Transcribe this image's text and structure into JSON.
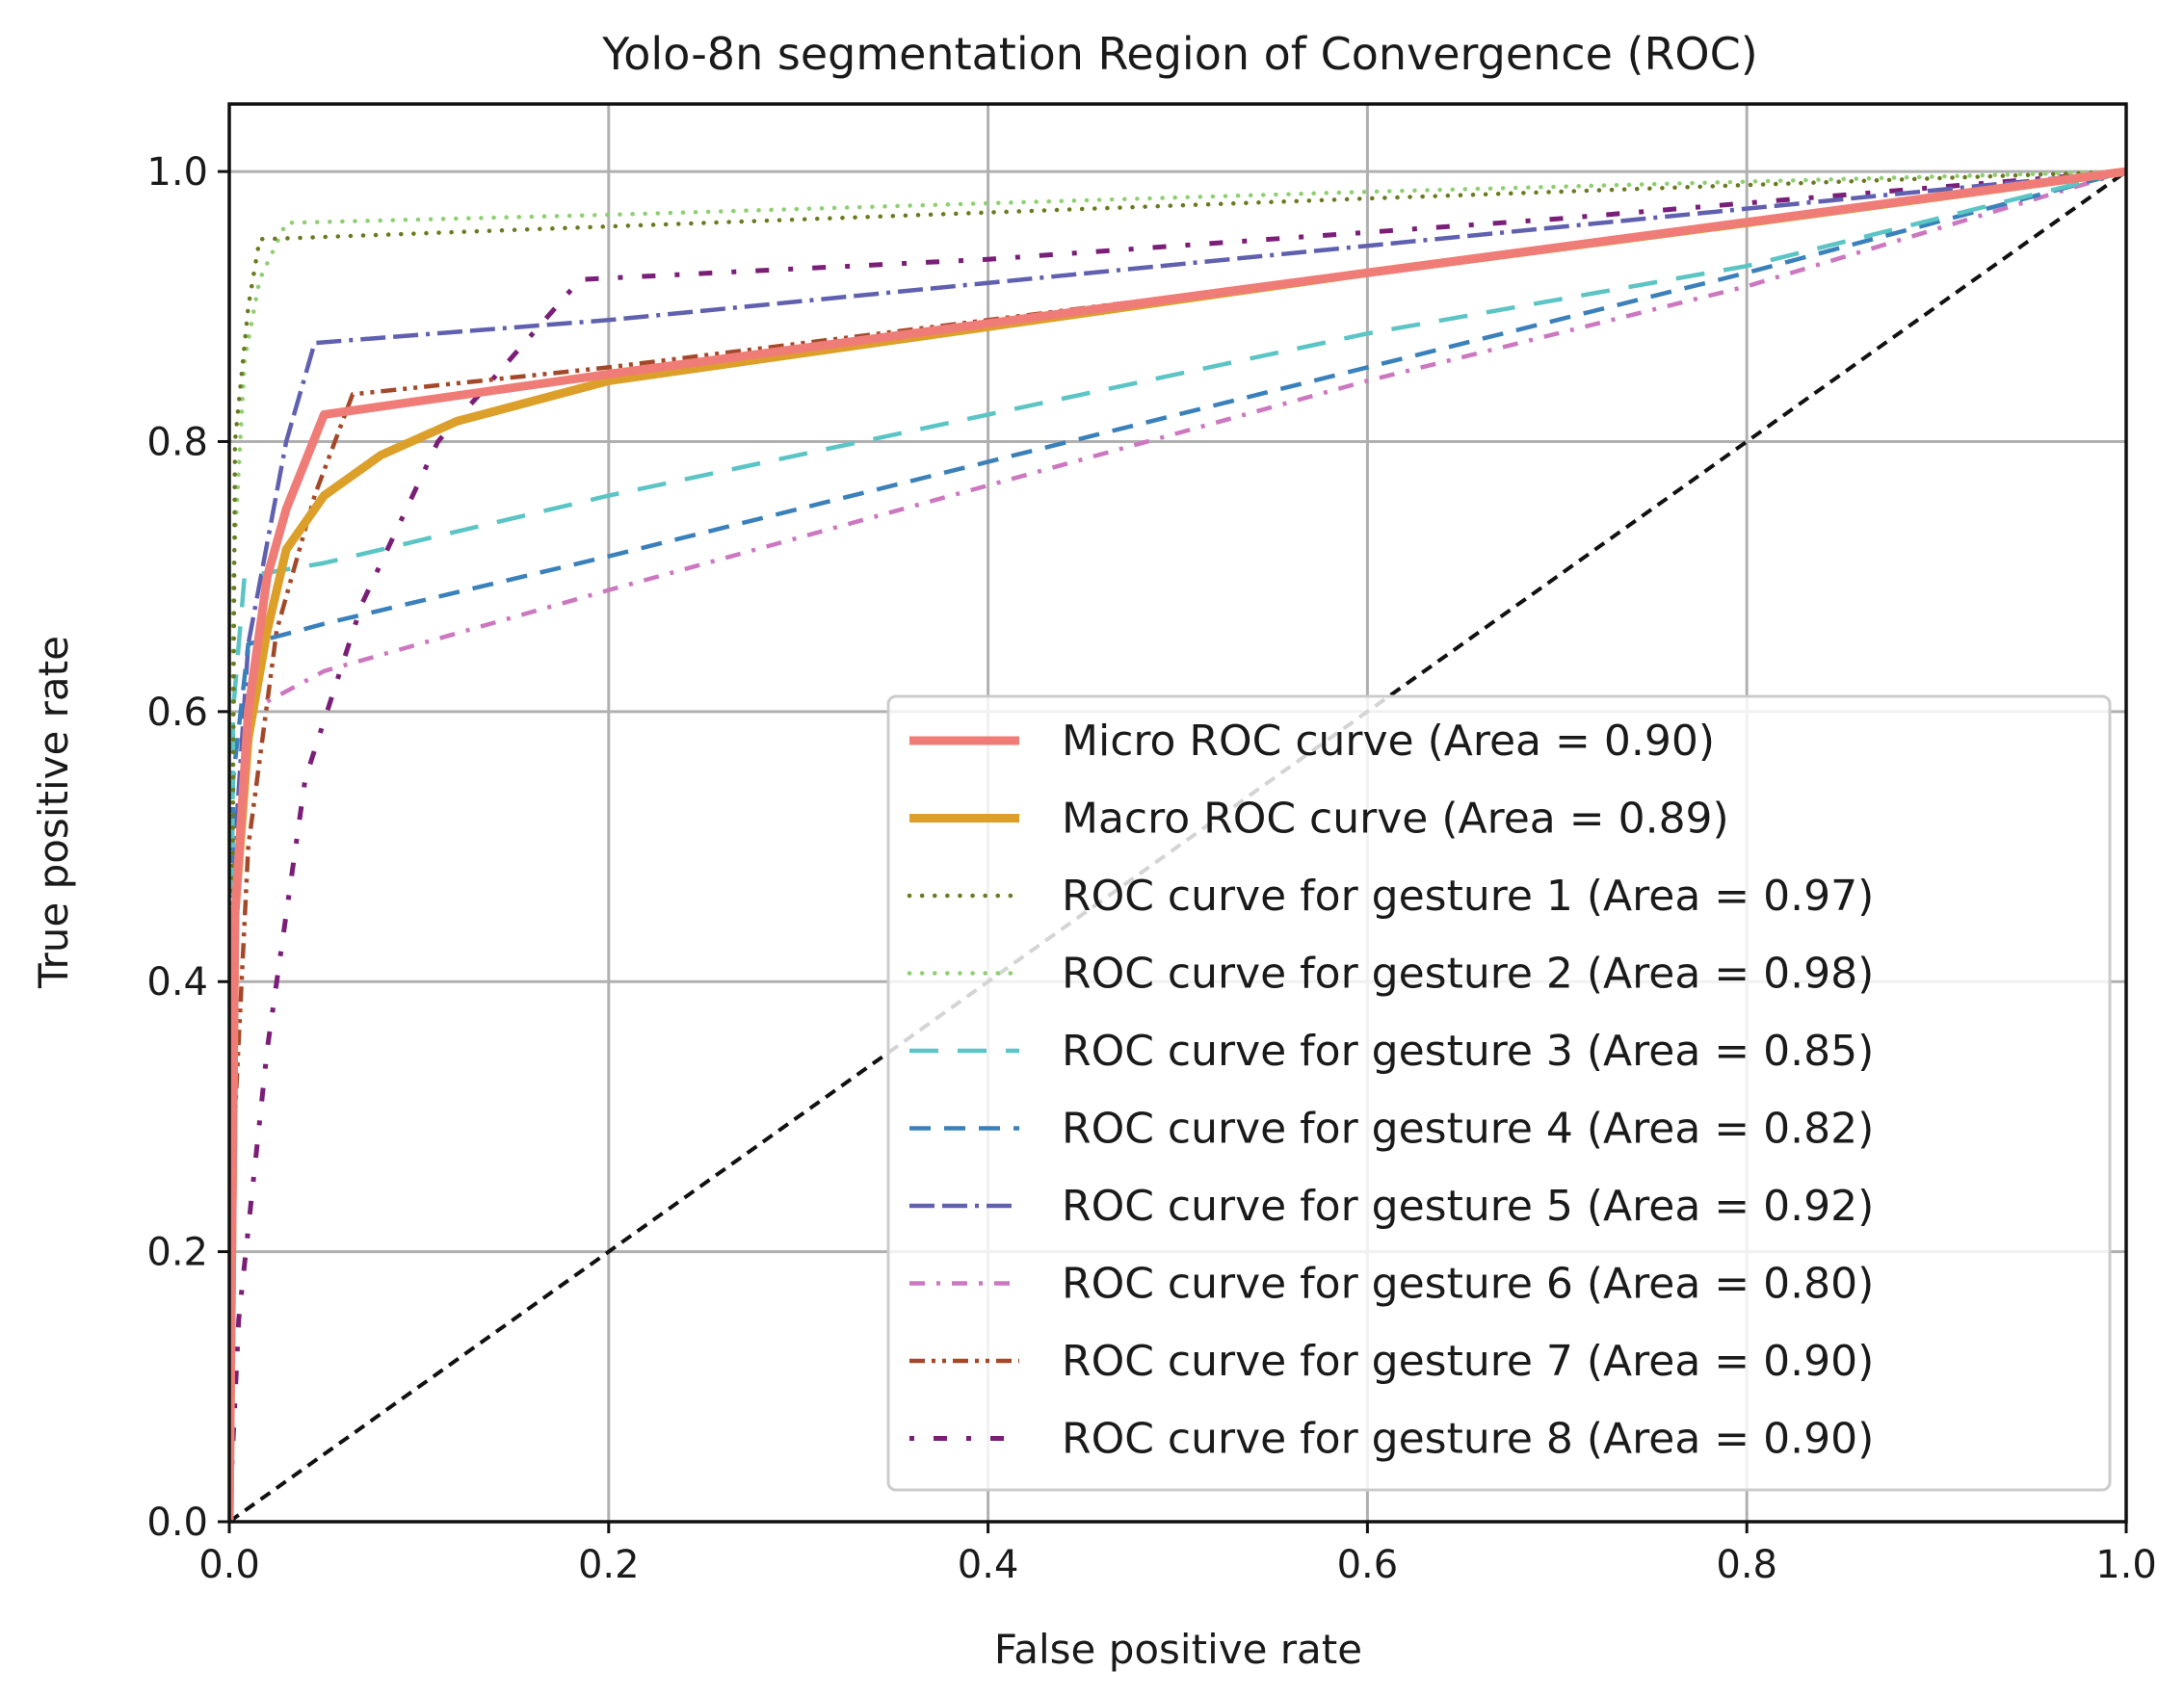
{
  "chart_data": {
    "type": "line",
    "title": "Yolo-8n segmentation Region of Convergence (ROC)",
    "xlabel": "False positive rate",
    "ylabel": "True positive rate",
    "xlim": [
      0.0,
      1.0
    ],
    "ylim": [
      0.0,
      1.05
    ],
    "xticks": [
      0.0,
      0.2,
      0.4,
      0.6,
      0.8,
      1.0
    ],
    "yticks": [
      0.0,
      0.2,
      0.4,
      0.6,
      0.8,
      1.0
    ],
    "xtick_labels": [
      "0.0",
      "0.2",
      "0.4",
      "0.6",
      "0.8",
      "1.0"
    ],
    "ytick_labels": [
      "0.0",
      "0.2",
      "0.4",
      "0.6",
      "0.8",
      "1.0"
    ],
    "grid": true,
    "legend_position": "lower-right",
    "series": [
      {
        "name": "Micro ROC curve (Area = 0.90)",
        "color": "#f07c78",
        "style": "solid-thick",
        "x": [
          0.0,
          0.003,
          0.01,
          0.02,
          0.03,
          0.05,
          0.2,
          1.0
        ],
        "y": [
          0.0,
          0.45,
          0.6,
          0.7,
          0.75,
          0.82,
          0.85,
          1.0
        ]
      },
      {
        "name": "Macro ROC curve (Area = 0.89)",
        "color": "#dca02a",
        "style": "solid-thick",
        "x": [
          0.0,
          0.003,
          0.01,
          0.02,
          0.03,
          0.05,
          0.08,
          0.12,
          0.2,
          0.4,
          0.6,
          0.8,
          1.0
        ],
        "y": [
          0.0,
          0.45,
          0.58,
          0.66,
          0.72,
          0.76,
          0.79,
          0.815,
          0.845,
          0.885,
          0.925,
          0.962,
          1.0
        ]
      },
      {
        "name": "ROC curve for gesture 1 (Area = 0.97)",
        "color": "#6b7a20",
        "style": "dotted",
        "x": [
          0.0,
          0.003,
          0.01,
          0.016,
          0.02,
          0.6,
          1.0
        ],
        "y": [
          0.0,
          0.8,
          0.9,
          0.95,
          0.95,
          0.98,
          1.0
        ]
      },
      {
        "name": "ROC curve for gesture 2 (Area = 0.98)",
        "color": "#8fcf72",
        "style": "dotted",
        "x": [
          0.0,
          0.002,
          0.008,
          0.016,
          0.03,
          0.2,
          0.6,
          1.0
        ],
        "y": [
          0.0,
          0.7,
          0.86,
          0.92,
          0.962,
          0.968,
          0.985,
          1.0
        ]
      },
      {
        "name": "ROC curve for gesture 3 (Area = 0.85)",
        "color": "#5bc4c4",
        "style": "dashed-long",
        "x": [
          0.0,
          0.002,
          0.008,
          0.05,
          0.2,
          0.6,
          0.8,
          1.0
        ],
        "y": [
          0.0,
          0.6,
          0.7,
          0.71,
          0.76,
          0.88,
          0.93,
          1.0
        ]
      },
      {
        "name": "ROC curve for gesture 4 (Area = 0.82)",
        "color": "#3a80bb",
        "style": "dashed",
        "x": [
          0.0,
          0.002,
          0.01,
          0.05,
          0.2,
          0.6,
          0.8,
          1.0
        ],
        "y": [
          0.0,
          0.55,
          0.65,
          0.665,
          0.715,
          0.855,
          0.925,
          1.0
        ]
      },
      {
        "name": "ROC curve for gesture 5 (Area = 0.92)",
        "color": "#6060b0",
        "style": "dash-dash-dot",
        "x": [
          0.0,
          0.003,
          0.01,
          0.03,
          0.045,
          0.2,
          0.6,
          1.0
        ],
        "y": [
          0.0,
          0.5,
          0.65,
          0.8,
          0.873,
          0.89,
          0.945,
          1.0
        ]
      },
      {
        "name": "ROC curve for gesture 6 (Area = 0.80)",
        "color": "#cc77c0",
        "style": "dash-dot",
        "x": [
          0.0,
          0.002,
          0.01,
          0.05,
          0.2,
          0.6,
          0.8,
          1.0
        ],
        "y": [
          0.0,
          0.45,
          0.6,
          0.63,
          0.69,
          0.845,
          0.915,
          1.0
        ]
      },
      {
        "name": "ROC curve for gesture 7 (Area = 0.90)",
        "color": "#a3492a",
        "style": "dash-dot-dot",
        "x": [
          0.0,
          0.003,
          0.01,
          0.025,
          0.045,
          0.065,
          0.2,
          0.6,
          1.0
        ],
        "y": [
          0.0,
          0.3,
          0.5,
          0.66,
          0.76,
          0.835,
          0.855,
          0.925,
          1.0
        ]
      },
      {
        "name": "ROC curve for gesture 8 (Area = 0.90)",
        "color": "#7a1e78",
        "style": "dot-dash-sparse",
        "x": [
          0.0,
          0.005,
          0.02,
          0.04,
          0.07,
          0.11,
          0.16,
          0.185,
          0.4,
          0.7,
          1.0
        ],
        "y": [
          0.0,
          0.15,
          0.35,
          0.55,
          0.68,
          0.8,
          0.88,
          0.92,
          0.935,
          0.965,
          1.0
        ]
      },
      {
        "name": "chance",
        "color": "#111111",
        "style": "dashed-black",
        "legend": false,
        "x": [
          0.0,
          1.0
        ],
        "y": [
          0.0,
          1.0
        ]
      }
    ]
  }
}
